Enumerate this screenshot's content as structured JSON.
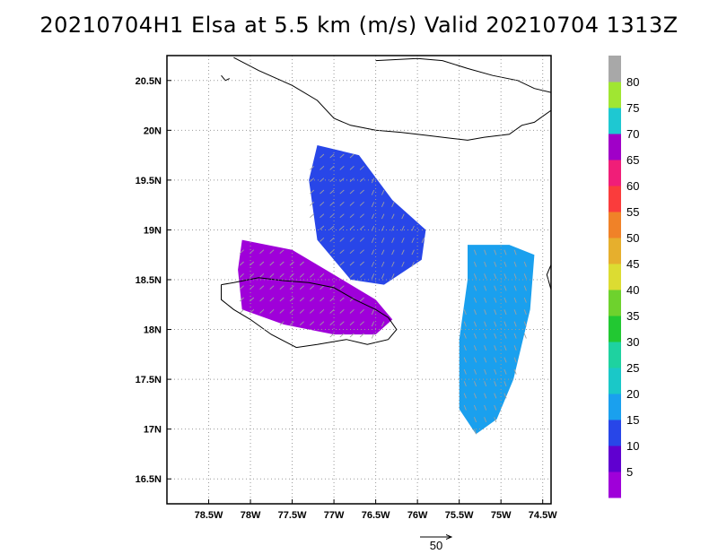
{
  "title": "20210704H1 Elsa at 5.5 km (m/s) Valid 20210704 1313Z",
  "map": {
    "lon_range": [
      -79.0,
      -74.4
    ],
    "lat_range": [
      16.25,
      20.75
    ],
    "lon_ticks": [
      {
        "lon": -78.5,
        "label": "78.5W"
      },
      {
        "lon": -78.0,
        "label": "78W"
      },
      {
        "lon": -77.5,
        "label": "77.5W"
      },
      {
        "lon": -77.0,
        "label": "77W"
      },
      {
        "lon": -76.5,
        "label": "76.5W"
      },
      {
        "lon": -76.0,
        "label": "76W"
      },
      {
        "lon": -75.5,
        "label": "75.5W"
      },
      {
        "lon": -75.0,
        "label": "75W"
      },
      {
        "lon": -74.5,
        "label": "74.5W"
      }
    ],
    "lat_ticks": [
      {
        "lat": 20.5,
        "label": "20.5N"
      },
      {
        "lat": 20.0,
        "label": "20N"
      },
      {
        "lat": 19.5,
        "label": "19.5N"
      },
      {
        "lat": 19.0,
        "label": "19N"
      },
      {
        "lat": 18.5,
        "label": "18.5N"
      },
      {
        "lat": 18.0,
        "label": "18N"
      },
      {
        "lat": 17.5,
        "label": "17.5N"
      },
      {
        "lat": 17.0,
        "label": "17N"
      },
      {
        "lat": 16.5,
        "label": "16.5N"
      }
    ],
    "grid": "dotted",
    "coastlines": {
      "cuba_south": [
        [
          -78.2,
          20.73
        ],
        [
          -77.9,
          20.6
        ],
        [
          -77.5,
          20.45
        ],
        [
          -77.2,
          20.3
        ],
        [
          -77.0,
          20.12
        ],
        [
          -76.8,
          20.05
        ],
        [
          -76.5,
          20.0
        ],
        [
          -76.2,
          19.98
        ],
        [
          -75.9,
          19.95
        ],
        [
          -75.6,
          19.92
        ],
        [
          -75.4,
          19.9
        ],
        [
          -75.2,
          19.93
        ],
        [
          -74.9,
          19.96
        ],
        [
          -74.75,
          20.05
        ],
        [
          -74.6,
          20.08
        ],
        [
          -74.4,
          20.2
        ]
      ],
      "cuba_north_east": [
        [
          -76.5,
          20.7
        ],
        [
          -76.0,
          20.72
        ],
        [
          -75.7,
          20.7
        ],
        [
          -75.4,
          20.62
        ],
        [
          -75.1,
          20.55
        ],
        [
          -74.8,
          20.5
        ],
        [
          -74.6,
          20.42
        ],
        [
          -74.4,
          20.38
        ]
      ],
      "jamaica": [
        [
          -78.35,
          18.45
        ],
        [
          -78.2,
          18.47
        ],
        [
          -77.9,
          18.52
        ],
        [
          -77.6,
          18.49
        ],
        [
          -77.3,
          18.47
        ],
        [
          -77.0,
          18.42
        ],
        [
          -76.75,
          18.3
        ],
        [
          -76.5,
          18.2
        ],
        [
          -76.35,
          18.12
        ],
        [
          -76.25,
          18.0
        ],
        [
          -76.35,
          17.9
        ],
        [
          -76.6,
          17.85
        ],
        [
          -76.85,
          17.9
        ],
        [
          -77.2,
          17.85
        ],
        [
          -77.45,
          17.82
        ],
        [
          -77.75,
          17.95
        ],
        [
          -78.0,
          18.1
        ],
        [
          -78.2,
          18.2
        ],
        [
          -78.35,
          18.3
        ],
        [
          -78.35,
          18.45
        ]
      ],
      "haiti": [
        [
          -74.4,
          18.4
        ],
        [
          -74.45,
          18.55
        ],
        [
          -74.4,
          18.65
        ]
      ],
      "cuba_islets": [
        [
          -78.35,
          20.55
        ],
        [
          -78.3,
          20.5
        ],
        [
          -78.25,
          20.52
        ]
      ]
    }
  },
  "colorbar": {
    "labels": [
      "5",
      "10",
      "15",
      "20",
      "25",
      "30",
      "35",
      "40",
      "45",
      "50",
      "55",
      "60",
      "65",
      "70",
      "75",
      "80"
    ],
    "colors": [
      "#9f00d9",
      "#6000d0",
      "#2846e8",
      "#1aa0ee",
      "#1ac8c8",
      "#1ed2a0",
      "#22c832",
      "#6ed22d",
      "#dcdc32",
      "#e6af2d",
      "#f08228",
      "#fa3c3c",
      "#f01e78",
      "#a000c8",
      "#1ec8d2",
      "#a0e632",
      "#a8a8a8"
    ]
  },
  "wind_field": {
    "units": "m/s",
    "level_km": 5.5,
    "regions": [
      {
        "name": "central-core",
        "speed_class": 15,
        "points": [
          [
            -77.2,
            19.85
          ],
          [
            -76.7,
            19.75
          ],
          [
            -76.3,
            19.3
          ],
          [
            -75.9,
            19.0
          ],
          [
            -75.95,
            18.7
          ],
          [
            -76.4,
            18.45
          ],
          [
            -76.8,
            18.5
          ],
          [
            -77.2,
            18.9
          ],
          [
            -77.3,
            19.5
          ]
        ]
      },
      {
        "name": "west-arm",
        "speed_class": 5,
        "points": [
          [
            -78.1,
            18.9
          ],
          [
            -77.5,
            18.8
          ],
          [
            -77.0,
            18.55
          ],
          [
            -76.5,
            18.3
          ],
          [
            -76.3,
            18.1
          ],
          [
            -76.5,
            17.95
          ],
          [
            -77.0,
            17.95
          ],
          [
            -77.6,
            18.05
          ],
          [
            -78.1,
            18.2
          ],
          [
            -78.15,
            18.6
          ]
        ]
      },
      {
        "name": "east-arm",
        "speed_class": 20,
        "points": [
          [
            -75.4,
            18.85
          ],
          [
            -74.9,
            18.85
          ],
          [
            -74.6,
            18.75
          ],
          [
            -74.65,
            18.2
          ],
          [
            -74.85,
            17.5
          ],
          [
            -75.05,
            17.1
          ],
          [
            -75.3,
            16.95
          ],
          [
            -75.5,
            17.2
          ],
          [
            -75.5,
            17.9
          ],
          [
            -75.4,
            18.5
          ]
        ]
      }
    ]
  },
  "reference_vector": {
    "label": "50",
    "value": 50
  }
}
